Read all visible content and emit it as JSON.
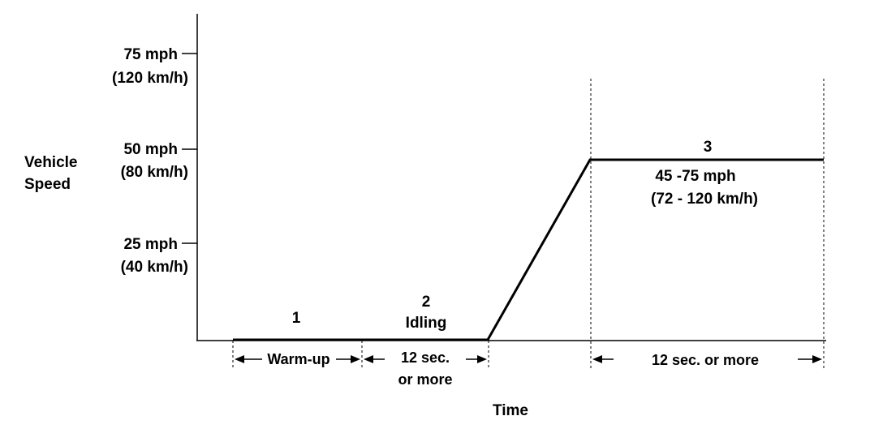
{
  "y_axis": {
    "label_line1": "Vehicle",
    "label_line2": "Speed",
    "ticks": [
      {
        "mph": "75 mph",
        "kmh": "(120 km/h)"
      },
      {
        "mph": "50 mph",
        "kmh": "(80 km/h)"
      },
      {
        "mph": "25 mph",
        "kmh": "(40 km/h)"
      }
    ]
  },
  "x_axis": {
    "label": "Time"
  },
  "phases": {
    "p1": {
      "number": "1",
      "duration": "Warm-up"
    },
    "p2": {
      "number": "2",
      "name": "Idling",
      "duration_line1": "12 sec.",
      "duration_line2": "or  more"
    },
    "p3": {
      "number": "3",
      "speed_line1": "45 -75 mph",
      "speed_line2": "(72 - 120 km/h)",
      "duration": "12 sec. or  more"
    }
  }
}
